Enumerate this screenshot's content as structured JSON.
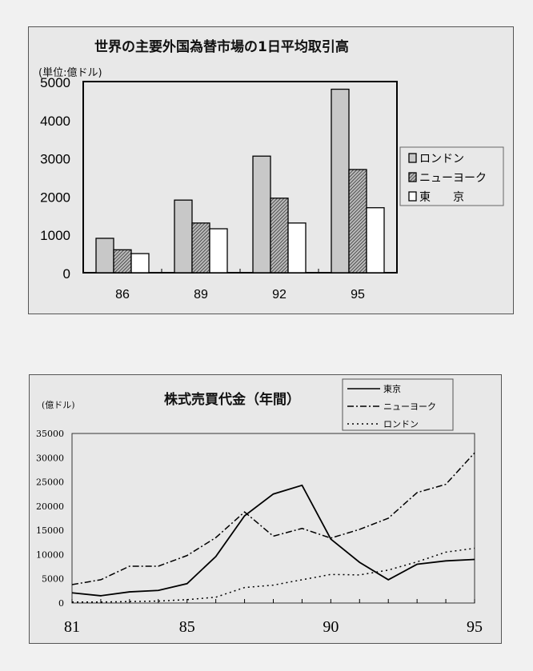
{
  "chart_data": [
    {
      "type": "bar",
      "title": "世界の主要外国為替市場の1日平均取引高",
      "ylabel": "(単位:億ドル)",
      "categories": [
        "86",
        "89",
        "92",
        "95"
      ],
      "ylim": [
        0,
        5000
      ],
      "yticks": [
        "0",
        "1000",
        "2000",
        "3000",
        "4000",
        "5000"
      ],
      "legend_position": "right",
      "series": [
        {
          "name": "ロンドン",
          "values": [
            900,
            1900,
            3050,
            4800
          ],
          "fill": "#c8c8c8"
        },
        {
          "name": "ニューヨーク",
          "values": [
            600,
            1300,
            1950,
            2700
          ],
          "fill": "hatch"
        },
        {
          "name": "東　　京",
          "values": [
            500,
            1150,
            1300,
            1700
          ],
          "fill": "#ffffff"
        }
      ]
    },
    {
      "type": "line",
      "title": "株式売買代金（年間）",
      "ylabel": "(億ドル)",
      "x": [
        81,
        82,
        83,
        84,
        85,
        86,
        87,
        88,
        89,
        90,
        91,
        92,
        93,
        94,
        95
      ],
      "xticks": [
        "81",
        "85",
        "90",
        "95"
      ],
      "ylim": [
        0,
        35000
      ],
      "yticks": [
        "0",
        "5000",
        "10000",
        "15000",
        "20000",
        "25000",
        "30000",
        "35000"
      ],
      "legend_position": "top-right",
      "series": [
        {
          "name": "東京",
          "style": "solid",
          "values": [
            2100,
            1500,
            2300,
            2600,
            4000,
            9600,
            18000,
            22500,
            24300,
            13200,
            8400,
            4800,
            8000,
            8700,
            9000
          ]
        },
        {
          "name": "ニューヨーク",
          "style": "dash-dot",
          "values": [
            3800,
            4800,
            7600,
            7600,
            9800,
            13500,
            18800,
            13800,
            15400,
            13400,
            15200,
            17500,
            22800,
            24500,
            31000
          ]
        },
        {
          "name": "ロンドン",
          "style": "dotted",
          "values": [
            200,
            200,
            300,
            400,
            700,
            1200,
            3200,
            3700,
            4800,
            5900,
            5800,
            6800,
            8500,
            10500,
            11300
          ]
        }
      ]
    }
  ]
}
